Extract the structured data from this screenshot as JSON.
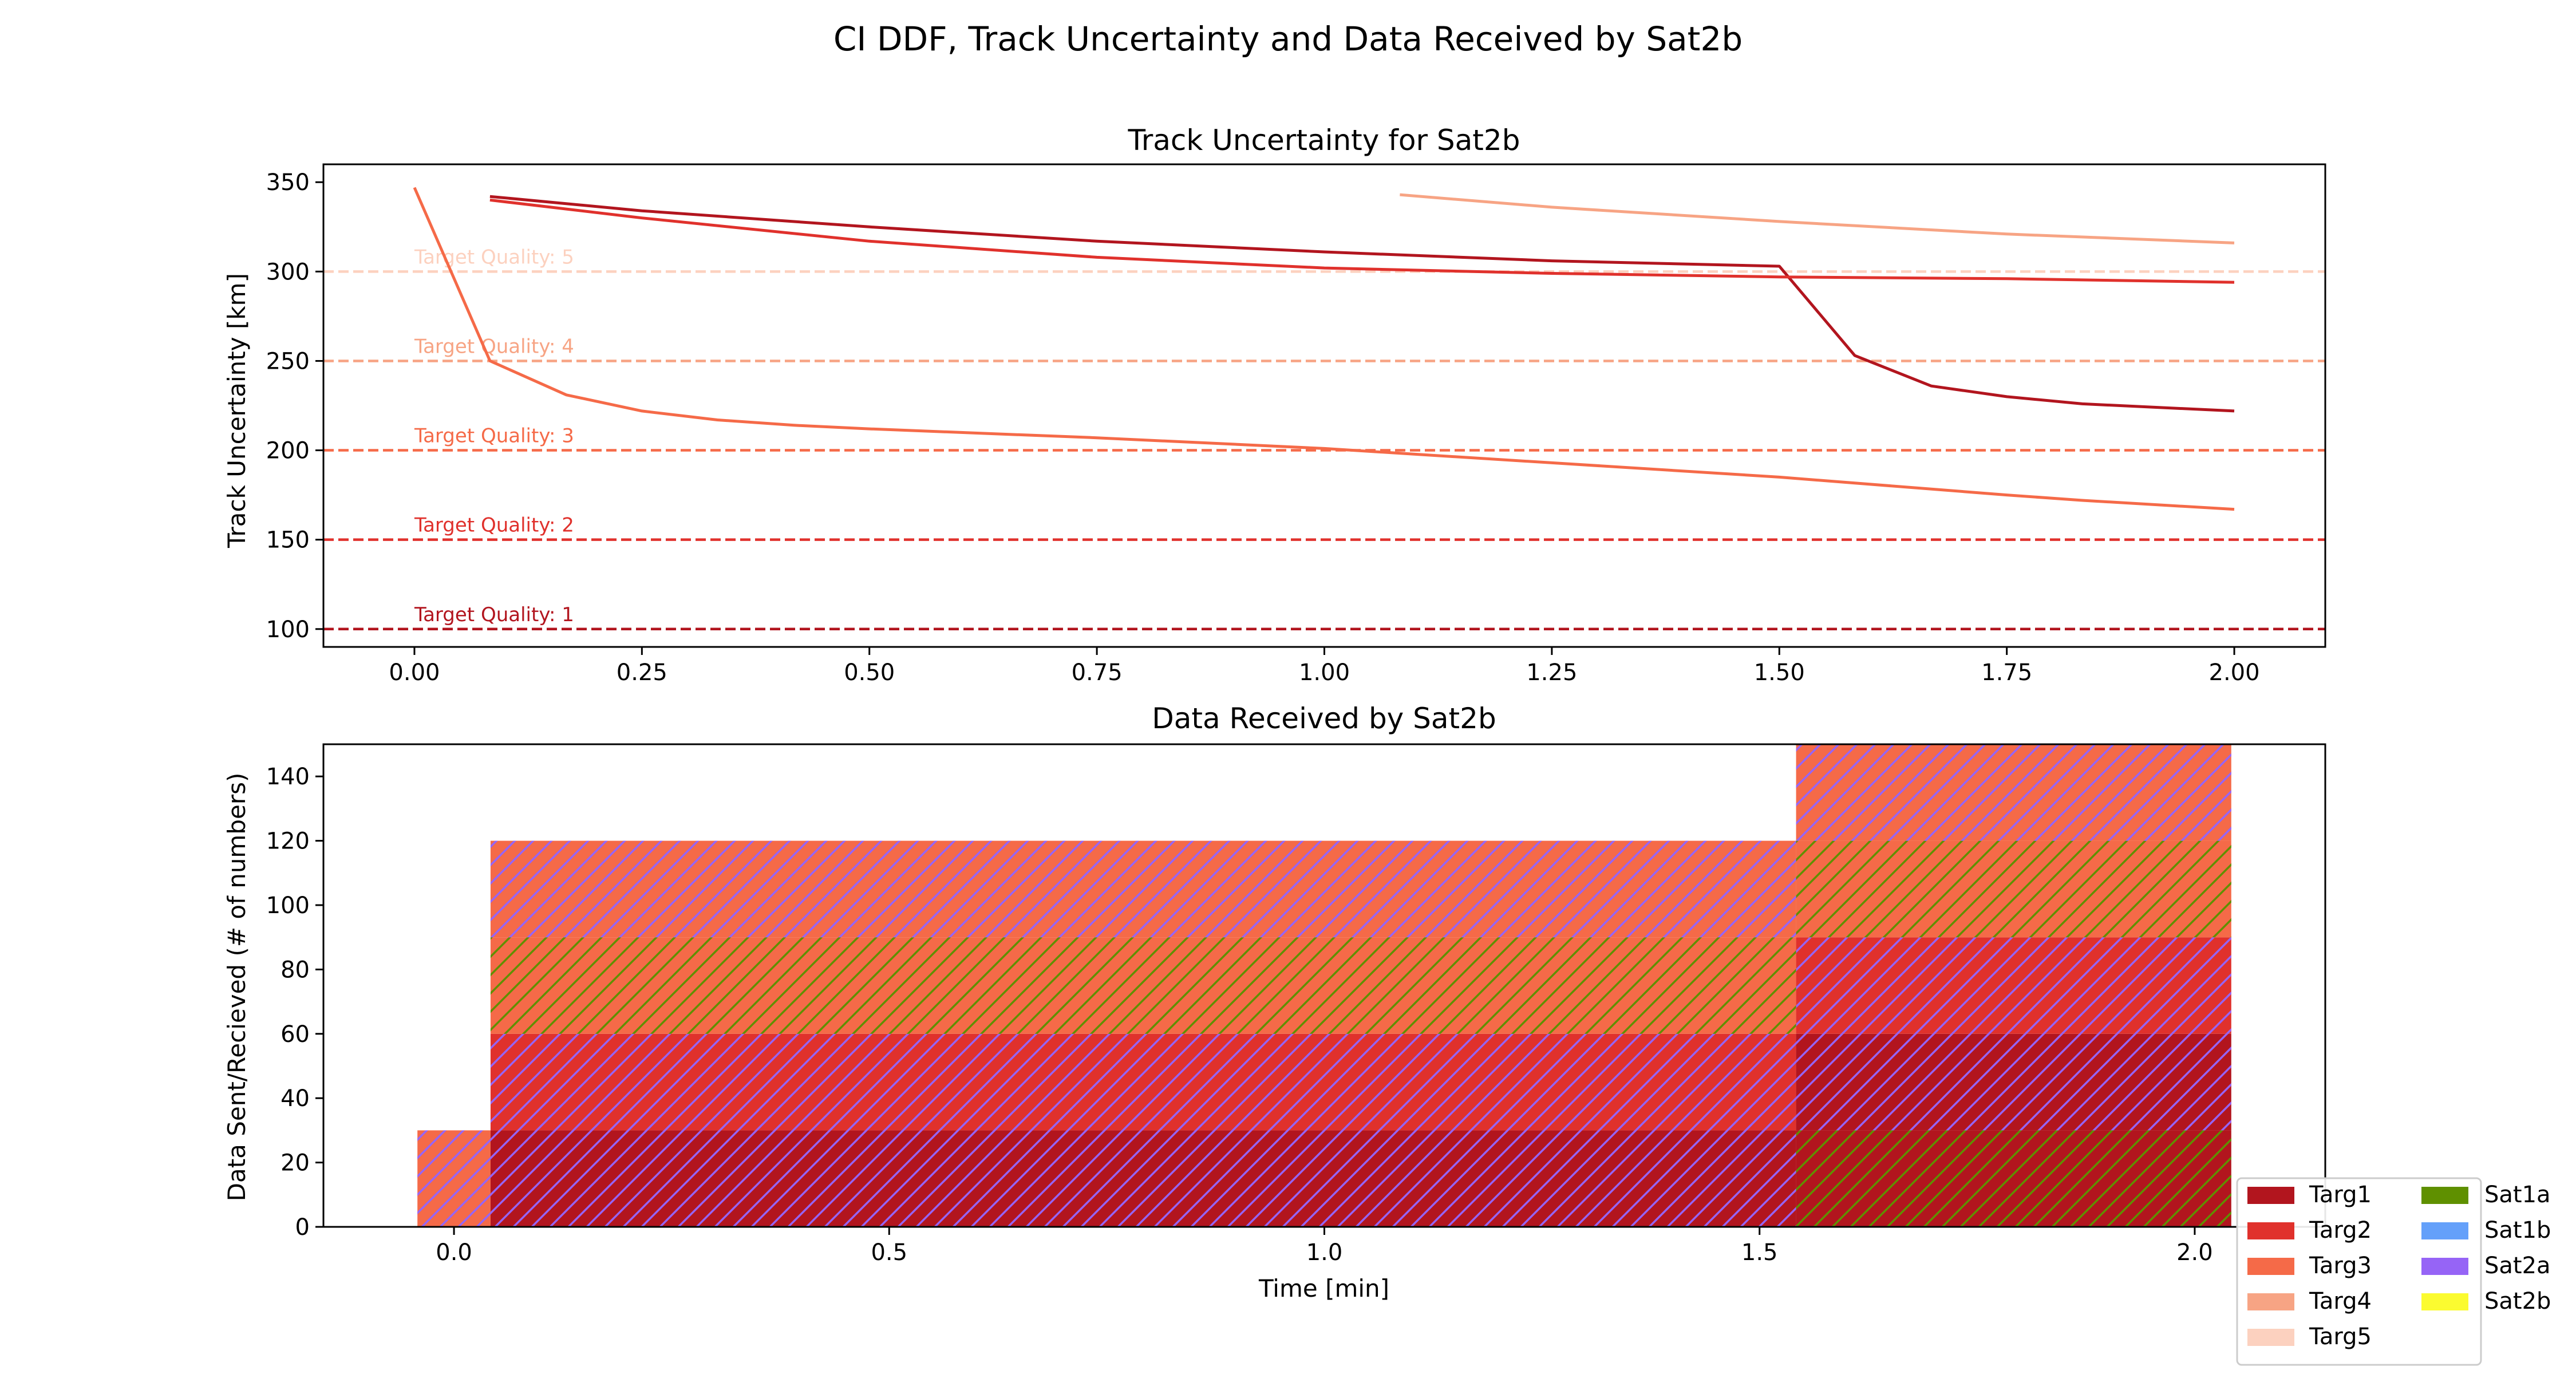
{
  "figure": {
    "title": "CI DDF, Track Uncertainty and Data Received by Sat2b"
  },
  "colors": {
    "Targ1": "#b2151e",
    "Targ2": "#e0312c",
    "Targ3": "#f56a48",
    "Targ4": "#f7a484",
    "Targ5": "#fcd1bf",
    "Sat1a": "#5f9000",
    "Sat1b": "#64a0fa",
    "Sat2a": "#9664f6",
    "Sat2b": "#fbfb30"
  },
  "chart_data": [
    {
      "type": "line",
      "title": "Track Uncertainty for Sat2b",
      "xlabel": "",
      "ylabel": "Track Uncertainty [km]",
      "xlim": [
        -0.1,
        2.1
      ],
      "ylim": [
        90,
        360
      ],
      "xticks": [
        "0.00",
        "0.25",
        "0.50",
        "0.75",
        "1.00",
        "1.25",
        "1.50",
        "1.75",
        "2.00"
      ],
      "xtick_values": [
        0,
        0.25,
        0.5,
        0.75,
        1.0,
        1.25,
        1.5,
        1.75,
        2.0
      ],
      "yticks": [
        "100",
        "150",
        "200",
        "250",
        "300",
        "350"
      ],
      "ytick_values": [
        100,
        150,
        200,
        250,
        300,
        350
      ],
      "grid": false,
      "reference_lines": [
        {
          "label": "Target Quality: 1",
          "y": 100,
          "color": "#b2151e"
        },
        {
          "label": "Target Quality: 2",
          "y": 150,
          "color": "#e0312c"
        },
        {
          "label": "Target Quality: 3",
          "y": 200,
          "color": "#f56a48"
        },
        {
          "label": "Target Quality: 4",
          "y": 250,
          "color": "#f7a484"
        },
        {
          "label": "Target Quality: 5",
          "y": 300,
          "color": "#fcd1bf"
        }
      ],
      "series": [
        {
          "color": "#b2151e",
          "x": [
            0.083,
            0.25,
            0.5,
            0.75,
            1.0,
            1.25,
            1.5,
            1.583,
            1.667,
            1.75,
            1.833,
            2.0
          ],
          "y": [
            342,
            334,
            325,
            317,
            311,
            306,
            303,
            253,
            236,
            230,
            226,
            222
          ]
        },
        {
          "color": "#e0312c",
          "x": [
            0.083,
            0.25,
            0.5,
            0.75,
            1.0,
            1.25,
            1.5,
            1.75,
            2.0
          ],
          "y": [
            340,
            330,
            317,
            308,
            302,
            299,
            297,
            296,
            294
          ]
        },
        {
          "color": "#f56a48",
          "x": [
            0.0,
            0.083,
            0.167,
            0.25,
            0.333,
            0.417,
            0.5,
            0.75,
            1.0,
            1.25,
            1.5,
            1.75,
            1.833,
            2.0
          ],
          "y": [
            347,
            250,
            231,
            222,
            217,
            214,
            212,
            207,
            201,
            193,
            185,
            175,
            172,
            167
          ]
        },
        {
          "color": "#f7a484",
          "x": [
            1.083,
            1.25,
            1.5,
            1.75,
            2.0
          ],
          "y": [
            343,
            336,
            328,
            321,
            316
          ]
        }
      ]
    },
    {
      "type": "bar",
      "stacked": true,
      "title": "Data Received by Sat2b",
      "xlabel": "Time [min]",
      "ylabel": "Data Sent/Recieved (# of numbers)",
      "xlim": [
        -0.15,
        2.15
      ],
      "ylim": [
        0,
        150
      ],
      "xticks": [
        "0.0",
        "0.5",
        "1.0",
        "1.5",
        "2.0"
      ],
      "xtick_values": [
        0,
        0.5,
        1.0,
        1.5,
        2.0
      ],
      "yticks": [
        "0",
        "20",
        "40",
        "60",
        "80",
        "100",
        "120",
        "140"
      ],
      "ytick_values": [
        0,
        20,
        40,
        60,
        80,
        100,
        120,
        140
      ],
      "bins": [
        {
          "x0": -0.042,
          "x1": 0.042,
          "segments": [
            {
              "target": "Targ3",
              "sender": "Sat2a",
              "value": 30
            }
          ]
        },
        {
          "x0": 0.042,
          "x1": 1.542,
          "segments": [
            {
              "target": "Targ1",
              "sender": "Sat2a",
              "value": 30
            },
            {
              "target": "Targ2",
              "sender": "Sat2a",
              "value": 30
            },
            {
              "target": "Targ3",
              "sender": "Sat1a",
              "value": 30
            },
            {
              "target": "Targ3",
              "sender": "Sat2a",
              "value": 30
            }
          ]
        },
        {
          "x0": 1.542,
          "x1": 2.042,
          "segments": [
            {
              "target": "Targ1",
              "sender": "Sat1a",
              "value": 30
            },
            {
              "target": "Targ1",
              "sender": "Sat2a",
              "value": 30
            },
            {
              "target": "Targ2",
              "sender": "Sat2a",
              "value": 30
            },
            {
              "target": "Targ3",
              "sender": "Sat1a",
              "value": 30
            },
            {
              "target": "Targ3",
              "sender": "Sat2a",
              "value": 30
            }
          ]
        }
      ]
    }
  ],
  "legend": {
    "placement": "bottom-right",
    "targets": [
      "Targ1",
      "Targ2",
      "Targ3",
      "Targ4",
      "Targ5"
    ],
    "senders": [
      "Sat1a",
      "Sat1b",
      "Sat2a",
      "Sat2b"
    ]
  }
}
